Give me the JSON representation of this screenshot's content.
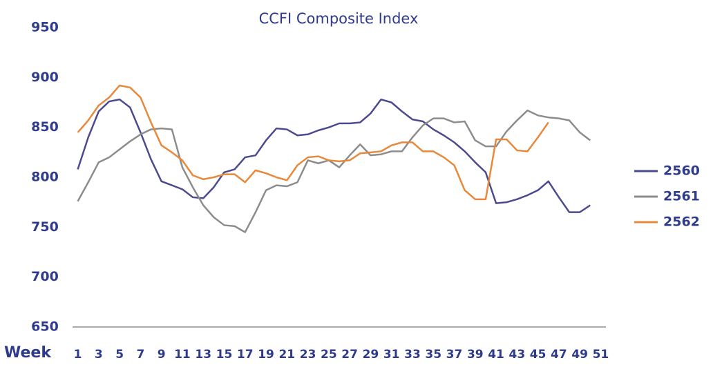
{
  "chart_data": {
    "type": "line",
    "title": "CCFI Composite Index",
    "xlabel": "Week",
    "x": [
      1,
      2,
      3,
      4,
      5,
      6,
      7,
      8,
      9,
      10,
      11,
      12,
      13,
      14,
      15,
      16,
      17,
      18,
      19,
      20,
      21,
      22,
      23,
      24,
      25,
      26,
      27,
      28,
      29,
      30,
      31,
      32,
      33,
      34,
      35,
      36,
      37,
      38,
      39,
      40,
      41,
      42,
      43,
      44,
      45,
      46,
      47,
      48,
      49,
      50,
      51
    ],
    "xlim": [
      0.5,
      51.5
    ],
    "xticks": [
      1,
      3,
      5,
      7,
      9,
      11,
      13,
      15,
      17,
      19,
      21,
      23,
      25,
      27,
      29,
      31,
      33,
      35,
      37,
      39,
      41,
      43,
      45,
      47,
      49,
      51
    ],
    "ylim": [
      650,
      950
    ],
    "yticks": [
      650,
      700,
      750,
      800,
      850,
      900,
      950
    ],
    "legend": "right",
    "series": [
      {
        "name": "2560",
        "color": "#4b4a8f",
        "values": [
          808,
          840,
          866,
          876,
          878,
          870,
          845,
          818,
          796,
          792,
          788,
          780,
          779,
          790,
          805,
          808,
          820,
          822,
          837,
          849,
          848,
          842,
          843,
          847,
          850,
          854,
          854,
          855,
          864,
          878,
          875,
          866,
          858,
          856,
          848,
          842,
          835,
          826,
          815,
          805,
          774,
          775,
          778,
          782,
          787,
          796,
          780,
          765,
          765,
          772,
          null
        ]
      },
      {
        "name": "2561",
        "color": "#8c8c8c",
        "values": [
          776,
          795,
          815,
          820,
          828,
          836,
          843,
          848,
          849,
          848,
          810,
          790,
          772,
          760,
          752,
          751,
          745,
          765,
          787,
          792,
          791,
          795,
          817,
          814,
          817,
          810,
          822,
          833,
          822,
          823,
          826,
          826,
          840,
          852,
          859,
          859,
          855,
          856,
          837,
          831,
          831,
          846,
          857,
          867,
          862,
          860,
          859,
          857,
          845,
          837,
          null
        ]
      },
      {
        "name": "2562",
        "color": "#e8883a",
        "values": [
          845,
          857,
          872,
          880,
          892,
          890,
          880,
          855,
          832,
          825,
          817,
          802,
          798,
          800,
          803,
          803,
          795,
          807,
          804,
          800,
          797,
          812,
          820,
          821,
          817,
          816,
          817,
          824,
          825,
          826,
          832,
          835,
          835,
          826,
          826,
          820,
          812,
          787,
          778,
          778,
          838,
          838,
          827,
          826,
          840,
          855,
          null,
          null,
          null,
          null,
          null
        ]
      }
    ]
  }
}
